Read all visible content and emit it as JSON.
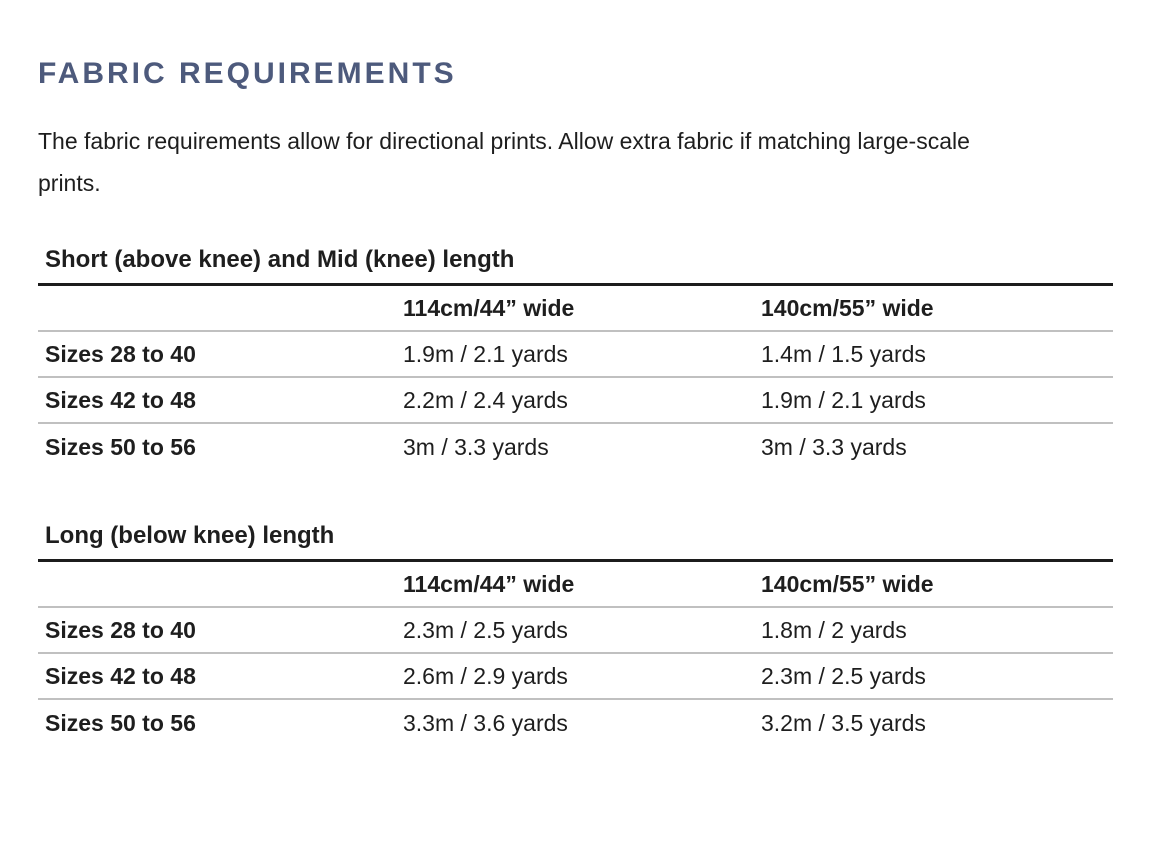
{
  "page": {
    "title": "FABRIC REQUIREMENTS",
    "intro": "The fabric requirements allow for directional prints. Allow extra fabric if matching large-scale prints."
  },
  "colors": {
    "heading": "#4d5a7c",
    "text": "#1e1e1e",
    "rule_dark": "#1c1c1c",
    "rule_light": "#c0c0c0"
  },
  "tables": [
    {
      "title": "Short (above knee) and Mid (knee) length",
      "columns": [
        "",
        "114cm/44” wide",
        "140cm/55” wide"
      ],
      "rows": [
        {
          "label": "Sizes 28 to 40",
          "values": [
            "1.9m / 2.1 yards",
            "1.4m / 1.5 yards"
          ]
        },
        {
          "label": "Sizes 42 to 48",
          "values": [
            "2.2m / 2.4 yards",
            "1.9m / 2.1 yards"
          ]
        },
        {
          "label": "Sizes 50 to 56",
          "values": [
            "3m / 3.3 yards",
            "3m / 3.3 yards"
          ]
        }
      ]
    },
    {
      "title": "Long (below knee) length",
      "columns": [
        "",
        "114cm/44” wide",
        "140cm/55” wide"
      ],
      "rows": [
        {
          "label": "Sizes 28 to 40",
          "values": [
            "2.3m / 2.5 yards",
            "1.8m / 2 yards"
          ]
        },
        {
          "label": "Sizes 42 to 48",
          "values": [
            "2.6m / 2.9 yards",
            "2.3m / 2.5 yards"
          ]
        },
        {
          "label": "Sizes 50 to 56",
          "values": [
            "3.3m / 3.6 yards",
            "3.2m / 3.5 yards"
          ]
        }
      ]
    }
  ]
}
